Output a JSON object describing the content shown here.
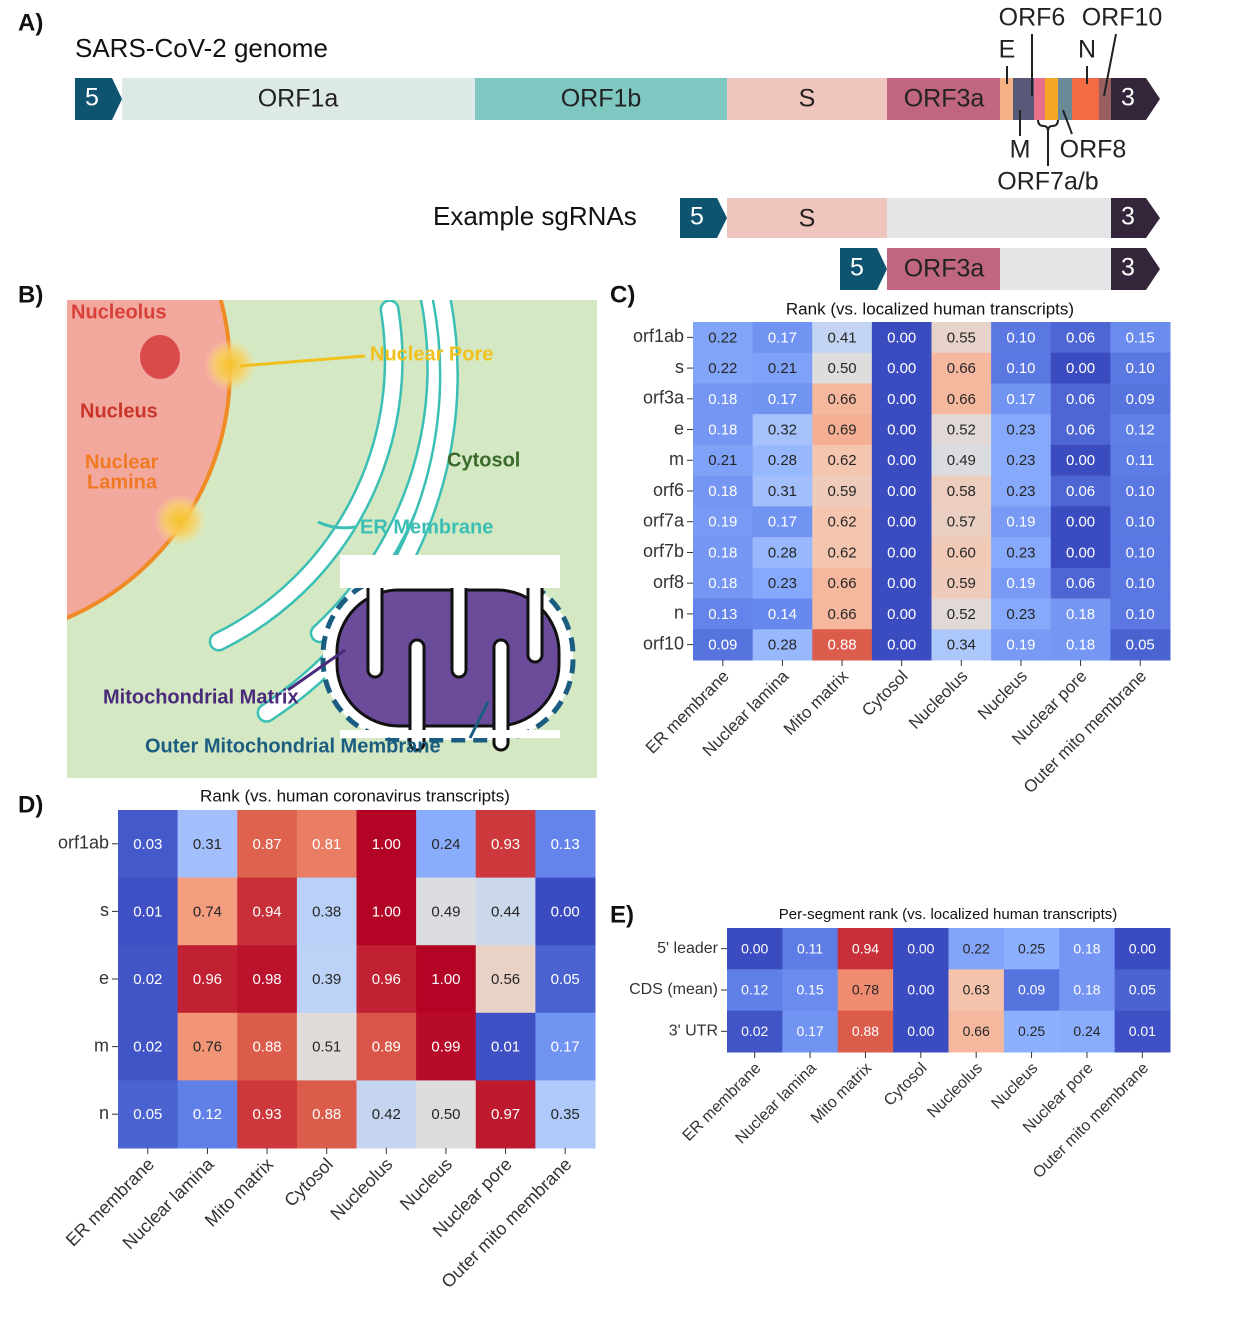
{
  "figure": {
    "panel_a": {
      "label": "A)",
      "title": "SARS-CoV-2 genome",
      "segments": [
        "5",
        "ORF1a",
        "ORF1b",
        "S",
        "ORF3a",
        "3"
      ],
      "callouts": [
        "ORF6",
        "ORF10",
        "E",
        "N",
        "M",
        "ORF8",
        "ORF7a/b"
      ],
      "sgrna_label": "Example sgRNAs",
      "sgrnas": [
        [
          "5",
          "S",
          "3"
        ],
        [
          "5",
          "ORF3a",
          "3"
        ]
      ]
    },
    "panel_b": {
      "label": "B)",
      "labels": [
        "Nucleolus",
        "Nuclear Pore",
        "Nucleus",
        "Nuclear",
        "Lamina",
        "Cytosol",
        "ER Membrane",
        "Mitochondrial Matrix",
        "Outer Mitochondrial Membrane"
      ]
    }
  },
  "chart_data": [
    {
      "type": "heatmap",
      "panel": "C)",
      "title": "Rank (vs. localized human transcripts)",
      "rows": [
        "orf1ab",
        "s",
        "orf3a",
        "e",
        "m",
        "orf6",
        "orf7a",
        "orf7b",
        "orf8",
        "n",
        "orf10"
      ],
      "columns": [
        "ER membrane",
        "Nuclear lamina",
        "Mito matrix",
        "Cytosol",
        "Nucleolus",
        "Nucleus",
        "Nuclear pore",
        "Outer mito membrane"
      ],
      "values": [
        [
          0.22,
          0.17,
          0.41,
          0,
          0.55,
          0.1,
          0.06,
          0.15
        ],
        [
          0.22,
          0.21,
          0.5,
          0,
          0.66,
          0.1,
          0,
          0.1
        ],
        [
          0.18,
          0.17,
          0.66,
          0,
          0.66,
          0.17,
          0.06,
          0.09
        ],
        [
          0.18,
          0.32,
          0.69,
          0,
          0.52,
          0.23,
          0.06,
          0.12
        ],
        [
          0.21,
          0.28,
          0.62,
          0,
          0.49,
          0.23,
          0,
          0.11
        ],
        [
          0.18,
          0.31,
          0.59,
          0,
          0.58,
          0.23,
          0.06,
          0.1
        ],
        [
          0.19,
          0.17,
          0.62,
          0,
          0.57,
          0.19,
          0,
          0.1
        ],
        [
          0.18,
          0.28,
          0.62,
          0,
          0.6,
          0.23,
          0,
          0.1
        ],
        [
          0.18,
          0.23,
          0.66,
          0,
          0.59,
          0.19,
          0.06,
          0.1
        ],
        [
          0.13,
          0.14,
          0.66,
          0,
          0.52,
          0.23,
          0.18,
          0.1
        ],
        [
          0.09,
          0.28,
          0.88,
          0,
          0.34,
          0.19,
          0.18,
          0.05
        ]
      ],
      "value_labels": [
        [
          "0.22",
          "0.17",
          "0.41",
          "0.00",
          "0.55",
          "0.10",
          "0.06",
          "0.15"
        ],
        [
          "0.22",
          "0.21",
          "0.50",
          "0.00",
          "0.66",
          "0.10",
          "0.00",
          "0.10"
        ],
        [
          "0.18",
          "0.17",
          "0.66",
          "0.00",
          "0.66",
          "0.17",
          "0.06",
          "0.09"
        ],
        [
          "0.18",
          "0.32",
          "0.69",
          "0.00",
          "0.52",
          "0.23",
          "0.06",
          "0.12"
        ],
        [
          "0.21",
          "0.28",
          "0.62",
          "0.00",
          "0.49",
          "0.23",
          "0.00",
          "0.11"
        ],
        [
          "0.18",
          "0.31",
          "0.59",
          "0.00",
          "0.58",
          "0.23",
          "0.06",
          "0.10"
        ],
        [
          "0.19",
          "0.17",
          "0.62",
          "0.00",
          "0.57",
          "0.19",
          "0.00",
          "0.10"
        ],
        [
          "0.18",
          "0.28",
          "0.62",
          "0.00",
          "0.60",
          "0.23",
          "0.00",
          "0.10"
        ],
        [
          "0.18",
          "0.23",
          "0.66",
          "0.00",
          "0.59",
          "0.19",
          "0.06",
          "0.10"
        ],
        [
          "0.13",
          "0.14",
          "0.66",
          "0.00",
          "0.52",
          "0.23",
          "0.18",
          "0.10"
        ],
        [
          "0.09",
          "0.28",
          "0.88",
          "0.00",
          "0.34",
          "0.19",
          "0.18",
          "0.05"
        ]
      ],
      "colormap": "coolwarm",
      "clim": [
        0,
        1
      ]
    },
    {
      "type": "heatmap",
      "panel": "D)",
      "title": "Rank (vs. human coronavirus transcripts)",
      "rows": [
        "orf1ab",
        "s",
        "e",
        "m",
        "n"
      ],
      "columns": [
        "ER membrane",
        "Nuclear lamina",
        "Mito matrix",
        "Cytosol",
        "Nucleolus",
        "Nucleus",
        "Nuclear pore",
        "Outer mito membrane"
      ],
      "values": [
        [
          0.03,
          0.31,
          0.87,
          0.81,
          1,
          0.24,
          0.93,
          0.13
        ],
        [
          0.01,
          0.74,
          0.94,
          0.38,
          1,
          0.49,
          0.44,
          0
        ],
        [
          0.02,
          0.96,
          0.98,
          0.39,
          0.96,
          1,
          0.56,
          0.05
        ],
        [
          0.02,
          0.76,
          0.88,
          0.51,
          0.89,
          0.99,
          0.01,
          0.17
        ],
        [
          0.05,
          0.12,
          0.93,
          0.88,
          0.42,
          0.5,
          0.97,
          0.35
        ]
      ],
      "value_labels": [
        [
          "0.03",
          "0.31",
          "0.87",
          "0.81",
          "1.00",
          "0.24",
          "0.93",
          "0.13"
        ],
        [
          "0.01",
          "0.74",
          "0.94",
          "0.38",
          "1.00",
          "0.49",
          "0.44",
          "0.00"
        ],
        [
          "0.02",
          "0.96",
          "0.98",
          "0.39",
          "0.96",
          "1.00",
          "0.56",
          "0.05"
        ],
        [
          "0.02",
          "0.76",
          "0.88",
          "0.51",
          "0.89",
          "0.99",
          "0.01",
          "0.17"
        ],
        [
          "0.05",
          "0.12",
          "0.93",
          "0.88",
          "0.42",
          "0.50",
          "0.97",
          "0.35"
        ]
      ],
      "colormap": "coolwarm",
      "clim": [
        0,
        1
      ]
    },
    {
      "type": "heatmap",
      "panel": "E)",
      "title": "Per-segment rank (vs. localized human transcripts)",
      "rows": [
        "5' leader",
        "CDS (mean)",
        "3' UTR"
      ],
      "columns": [
        "ER membrane",
        "Nuclear lamina",
        "Mito matrix",
        "Cytosol",
        "Nucleolus",
        "Nucleus",
        "Nuclear pore",
        "Outer mito membrane"
      ],
      "values": [
        [
          0,
          0.11,
          0.94,
          0,
          0.22,
          0.25,
          0.18,
          0
        ],
        [
          0.12,
          0.15,
          0.78,
          0,
          0.63,
          0.09,
          0.18,
          0.05
        ],
        [
          0.02,
          0.17,
          0.88,
          0,
          0.66,
          0.25,
          0.24,
          0.01
        ]
      ],
      "value_labels": [
        [
          "0.00",
          "0.11",
          "0.94",
          "0.00",
          "0.22",
          "0.25",
          "0.18",
          "0.00"
        ],
        [
          "0.12",
          "0.15",
          "0.78",
          "0.00",
          "0.63",
          "0.09",
          "0.18",
          "0.05"
        ],
        [
          "0.02",
          "0.17",
          "0.88",
          "0.00",
          "0.66",
          "0.25",
          "0.24",
          "0.01"
        ]
      ],
      "colormap": "coolwarm",
      "clim": [
        0,
        1
      ]
    }
  ]
}
